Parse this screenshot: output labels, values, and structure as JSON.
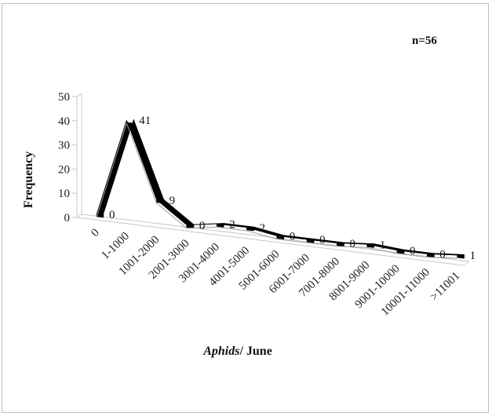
{
  "chart_data": {
    "type": "line",
    "style": "3d-ribbon",
    "annotation": "n=56",
    "ylabel": "Frequency",
    "xlabel_italic": "Aphids",
    "xlabel_rest": "/ June",
    "ylim": [
      0,
      50
    ],
    "yticks": [
      "50",
      "40",
      "30",
      "20",
      "10",
      "0"
    ],
    "categories": [
      "0",
      "1-1000",
      "1001-2000",
      "2001-3000",
      "3001-4000",
      "4001-5000",
      "5001-6000",
      "6001-7000",
      "7001-8000",
      "8001-9000",
      "9001-10000",
      "10001-11000",
      ">11001"
    ],
    "values": [
      0,
      41,
      9,
      0,
      2,
      2,
      0,
      0,
      0,
      1,
      0,
      0,
      1
    ],
    "data_labels": [
      "0",
      "41",
      "9",
      "0",
      "2",
      "2",
      "0",
      "0",
      "0",
      "1",
      "0",
      "0",
      "1"
    ],
    "line_color": "#000000",
    "grid": false,
    "legend": "none"
  }
}
